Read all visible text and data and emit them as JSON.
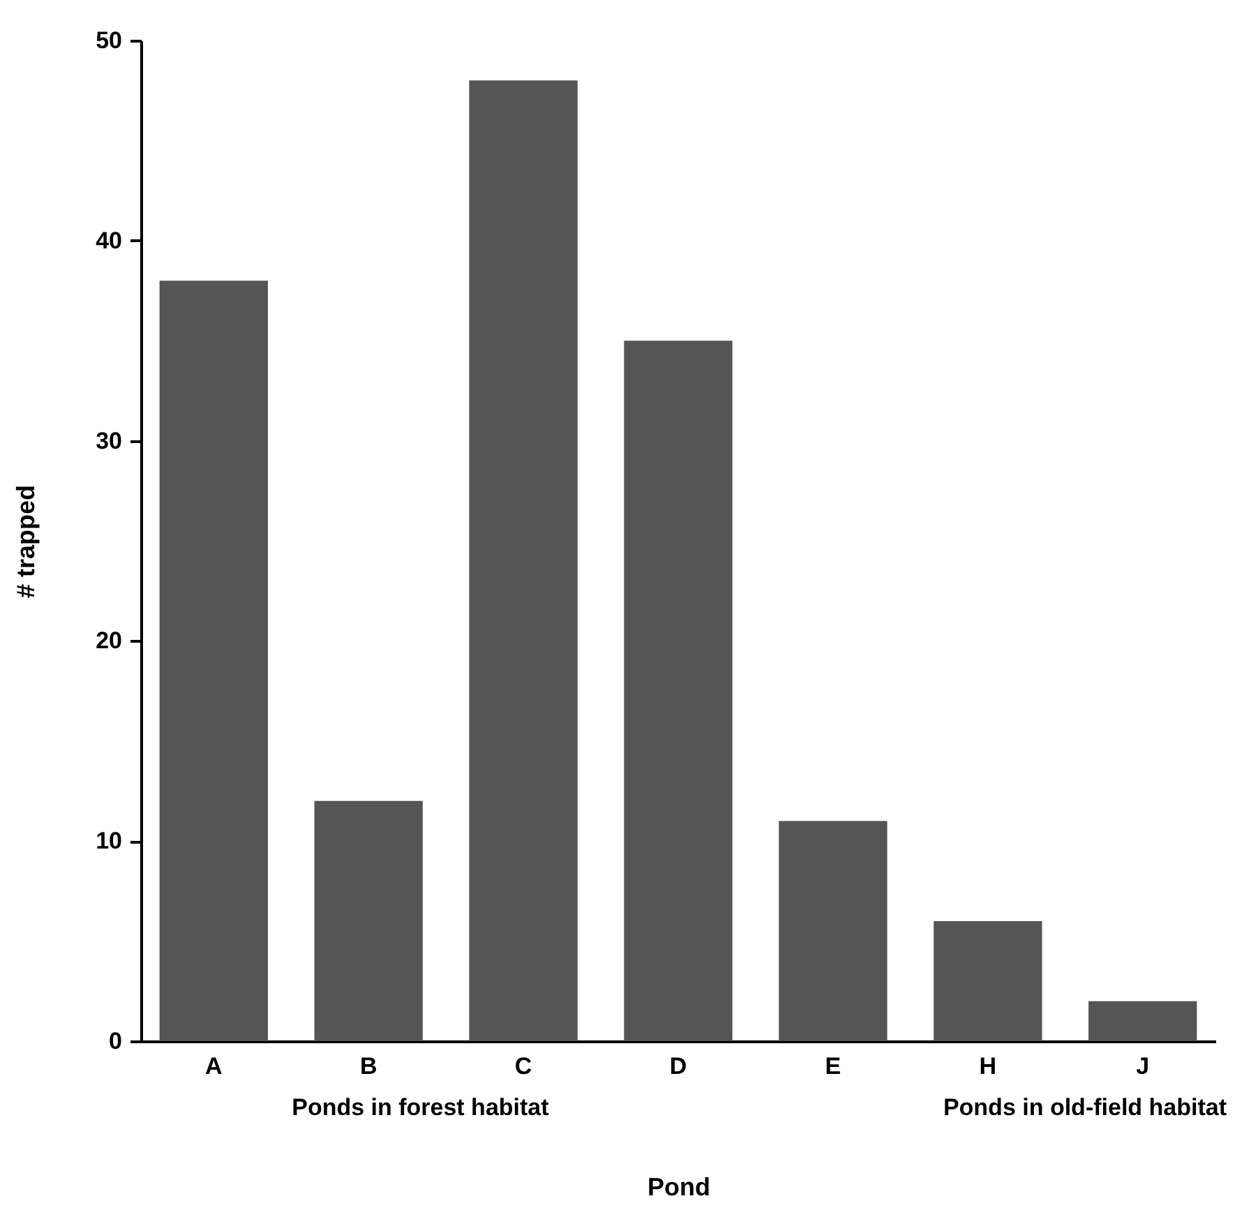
{
  "chart_data": {
    "type": "bar",
    "categories": [
      "A",
      "B",
      "C",
      "D",
      "E",
      "H",
      "J"
    ],
    "values": [
      38,
      12,
      48,
      35,
      11,
      6,
      2
    ],
    "color": "#555555",
    "xlabel": "Pond",
    "ylabel": "# trapped",
    "ylim": [
      0,
      50
    ],
    "yticks": [
      0,
      10,
      20,
      30,
      40,
      50
    ],
    "annotations": [
      "Ponds in forest habitat",
      "Ponds in old-field habitat"
    ]
  }
}
